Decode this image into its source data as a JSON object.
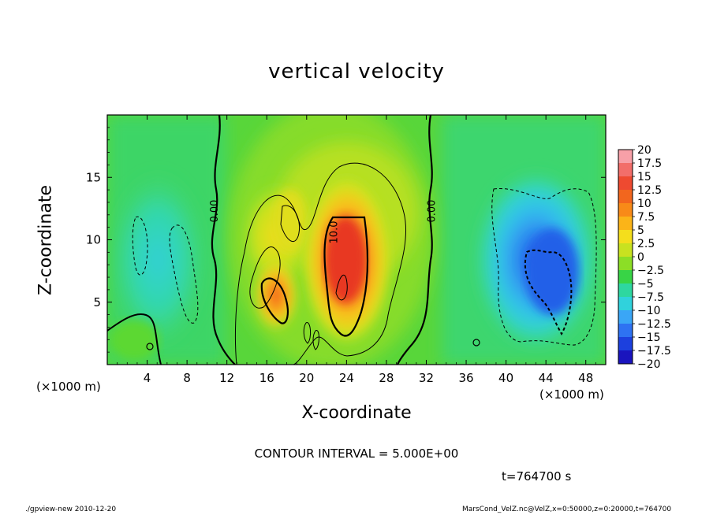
{
  "title": "vertical velocity",
  "footer_left": "./gpview-new  2010-12-20",
  "footer_right": "MarsCond_VelZ.nc@VelZ,x=0:50000,z=0:20000,t=764700",
  "contour_interval_text": "CONTOUR INTERVAL = 5.000E+00",
  "time_text": "t=764700  s",
  "chart_data": {
    "type": "heatmap",
    "title": "vertical velocity",
    "xlabel": "X-coordinate",
    "ylabel": "Z-coordinate",
    "x_unit_left": "(×1000 m)",
    "x_unit_right": "(×1000 m)",
    "xlim": [
      0,
      50
    ],
    "ylim": [
      0,
      20
    ],
    "x_ticks": [
      4,
      8,
      12,
      16,
      20,
      24,
      28,
      32,
      36,
      40,
      44,
      48
    ],
    "y_ticks": [
      5,
      10,
      15
    ],
    "x_tick_labels": [
      "4",
      "8",
      "12",
      "16",
      "20",
      "24",
      "28",
      "32",
      "36",
      "40",
      "44",
      "48"
    ],
    "y_tick_labels": [
      "5",
      "10",
      "15"
    ],
    "contour_labels": [
      {
        "text": "0.00",
        "x": 10.8,
        "y": 12.3
      },
      {
        "text": "10.0",
        "x": 22.8,
        "y": 10.6
      },
      {
        "text": "0.00",
        "x": 32.6,
        "y": 12.3
      }
    ],
    "colorbar": {
      "labels": [
        "20",
        "17.5",
        "15",
        "12.5",
        "10",
        "7.5",
        "5",
        "2.5",
        "0",
        "−2.5",
        "−5",
        "−7.5",
        "−10",
        "−12.5",
        "−15",
        "−17.5",
        "−20"
      ],
      "colors": [
        "#f7a0a8",
        "#f26e6a",
        "#ee4a30",
        "#f2661e",
        "#f88a18",
        "#fbb418",
        "#f4de1c",
        "#c8e220",
        "#8cde26",
        "#38d446",
        "#2ed7a0",
        "#30d2dc",
        "#3aa6f6",
        "#2e72f2",
        "#1c40de",
        "#1a14be",
        "#5a1aa8"
      ]
    },
    "features": [
      {
        "kind": "updraft",
        "center_x": 24,
        "center_z": 8,
        "peak": 15
      },
      {
        "kind": "updraft",
        "center_x": 16.5,
        "center_z": 6,
        "peak": 12.5
      },
      {
        "kind": "downdraft",
        "center_x": 44.5,
        "center_z": 7.5,
        "peak": -12.5
      },
      {
        "kind": "downdraft",
        "center_x": 6.5,
        "center_z": 8,
        "peak": -5
      }
    ]
  }
}
